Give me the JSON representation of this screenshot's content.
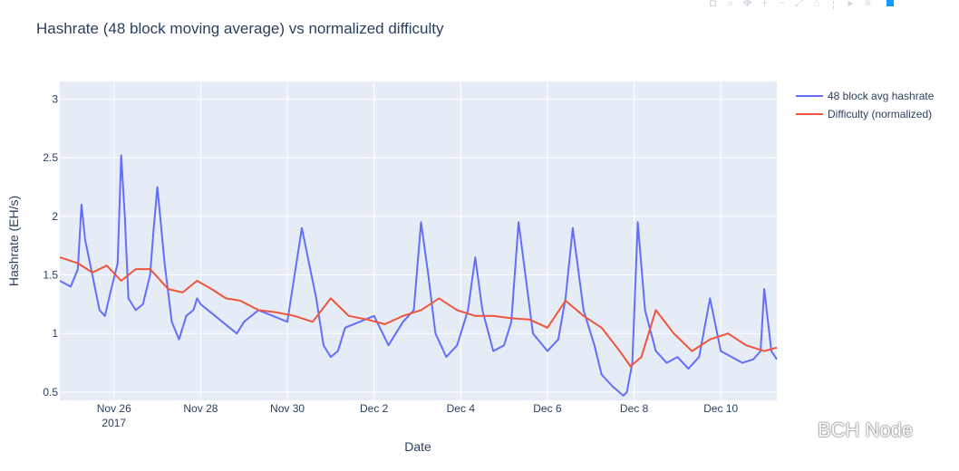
{
  "title": "Hashrate (48 block moving average) vs normalized difficulty",
  "watermark": "BCH Node",
  "toolbar": {
    "icons": [
      "camera-icon",
      "zoom-icon",
      "pan-icon",
      "zoom-in-icon",
      "zoom-out-icon",
      "autoscale-icon",
      "reset-axes-icon",
      "spike-lines-icon",
      "hover-closest-icon",
      "hover-compare-icon",
      "plotly-logo-icon"
    ]
  },
  "chart_data": {
    "type": "line",
    "xlabel": "Date",
    "ylabel": "Hashrate (EH/s)",
    "xlim": [
      "2017-11-24T18:00",
      "2017-12-11T07:00"
    ],
    "ylim": [
      0.43,
      3.15
    ],
    "yticks": [
      0.5,
      1,
      1.5,
      2,
      2.5,
      3
    ],
    "ytick_labels": [
      "0.5",
      "1",
      "1.5",
      "2",
      "2.5",
      "3"
    ],
    "xticks": [
      "2017-11-26",
      "2017-11-28",
      "2017-11-30",
      "2017-12-02",
      "2017-12-04",
      "2017-12-06",
      "2017-12-08",
      "2017-12-10"
    ],
    "xtick_labels": [
      "Nov 26",
      "Nov 28",
      "Nov 30",
      "Dec 2",
      "Dec 4",
      "Dec 6",
      "Dec 8",
      "Dec 10"
    ],
    "xtick_sublabel": "2017",
    "grid": true,
    "legend_position": "top-right",
    "series": [
      {
        "name": "48 block avg hashrate",
        "color": "#636efa",
        "x": [
          "2017-11-24T18:00",
          "2017-11-25T00:00",
          "2017-11-25T04:00",
          "2017-11-25T06:00",
          "2017-11-25T08:00",
          "2017-11-25T12:00",
          "2017-11-25T16:00",
          "2017-11-25T19:00",
          "2017-11-25T22:00",
          "2017-11-26T02:00",
          "2017-11-26T04:00",
          "2017-11-26T06:00",
          "2017-11-26T08:00",
          "2017-11-26T12:00",
          "2017-11-26T16:00",
          "2017-11-26T20:00",
          "2017-11-26T22:00",
          "2017-11-27T00:00",
          "2017-11-27T04:00",
          "2017-11-27T08:00",
          "2017-11-27T12:00",
          "2017-11-27T16:00",
          "2017-11-27T20:00",
          "2017-11-27T22:00",
          "2017-11-28T00:00",
          "2017-11-28T04:00",
          "2017-11-28T08:00",
          "2017-11-28T12:00",
          "2017-11-28T16:00",
          "2017-11-28T20:00",
          "2017-11-29T00:00",
          "2017-11-29T08:00",
          "2017-11-29T16:00",
          "2017-11-30T00:00",
          "2017-11-30T08:00",
          "2017-11-30T16:00",
          "2017-11-30T20:00",
          "2017-12-01T00:00",
          "2017-12-01T04:00",
          "2017-12-01T08:00",
          "2017-12-01T16:00",
          "2017-12-02T00:00",
          "2017-12-02T08:00",
          "2017-12-02T16:00",
          "2017-12-02T22:00",
          "2017-12-03T02:00",
          "2017-12-03T06:00",
          "2017-12-03T10:00",
          "2017-12-03T16:00",
          "2017-12-03T22:00",
          "2017-12-04T04:00",
          "2017-12-04T08:00",
          "2017-12-04T12:00",
          "2017-12-04T18:00",
          "2017-12-05T00:00",
          "2017-12-05T04:00",
          "2017-12-05T08:00",
          "2017-12-05T16:00",
          "2017-12-06T00:00",
          "2017-12-06T06:00",
          "2017-12-06T10:00",
          "2017-12-06T14:00",
          "2017-12-06T20:00",
          "2017-12-07T02:00",
          "2017-12-07T06:00",
          "2017-12-07T12:00",
          "2017-12-07T18:00",
          "2017-12-07T20:00",
          "2017-12-07T23:00",
          "2017-12-08T02:00",
          "2017-12-08T06:00",
          "2017-12-08T12:00",
          "2017-12-08T18:00",
          "2017-12-09T00:00",
          "2017-12-09T06:00",
          "2017-12-09T12:00",
          "2017-12-09T18:00",
          "2017-12-10T00:00",
          "2017-12-10T06:00",
          "2017-12-10T12:00",
          "2017-12-10T18:00",
          "2017-12-10T22:00",
          "2017-12-11T00:00",
          "2017-12-11T04:00",
          "2017-12-11T07:00"
        ],
        "y": [
          1.45,
          1.4,
          1.55,
          2.1,
          1.8,
          1.5,
          1.2,
          1.15,
          1.35,
          1.6,
          2.52,
          2.0,
          1.3,
          1.2,
          1.25,
          1.5,
          1.9,
          2.25,
          1.6,
          1.1,
          0.95,
          1.15,
          1.2,
          1.3,
          1.25,
          1.2,
          1.15,
          1.1,
          1.05,
          1.0,
          1.1,
          1.2,
          1.15,
          1.1,
          1.9,
          1.3,
          0.9,
          0.8,
          0.85,
          1.05,
          1.1,
          1.15,
          0.9,
          1.1,
          1.2,
          1.95,
          1.5,
          1.0,
          0.8,
          0.9,
          1.2,
          1.65,
          1.2,
          0.85,
          0.9,
          1.1,
          1.95,
          1.0,
          0.85,
          0.95,
          1.3,
          1.9,
          1.2,
          0.9,
          0.65,
          0.55,
          0.47,
          0.5,
          0.75,
          1.95,
          1.2,
          0.85,
          0.75,
          0.8,
          0.7,
          0.8,
          1.3,
          0.85,
          0.8,
          0.75,
          0.78,
          0.85,
          1.38,
          0.85,
          0.78
        ]
      },
      {
        "name": "Difficulty (normalized)",
        "color": "#ef553b",
        "x": [
          "2017-11-24T18:00",
          "2017-11-25T04:00",
          "2017-11-25T12:00",
          "2017-11-25T20:00",
          "2017-11-26T04:00",
          "2017-11-26T12:00",
          "2017-11-26T20:00",
          "2017-11-27T06:00",
          "2017-11-27T14:00",
          "2017-11-27T22:00",
          "2017-11-28T06:00",
          "2017-11-28T14:00",
          "2017-11-28T22:00",
          "2017-11-29T08:00",
          "2017-11-29T18:00",
          "2017-11-30T04:00",
          "2017-11-30T14:00",
          "2017-12-01T00:00",
          "2017-12-01T10:00",
          "2017-12-01T20:00",
          "2017-12-02T06:00",
          "2017-12-02T16:00",
          "2017-12-03T02:00",
          "2017-12-03T12:00",
          "2017-12-03T22:00",
          "2017-12-04T08:00",
          "2017-12-04T18:00",
          "2017-12-05T04:00",
          "2017-12-05T14:00",
          "2017-12-06T00:00",
          "2017-12-06T10:00",
          "2017-12-06T20:00",
          "2017-12-07T06:00",
          "2017-12-07T16:00",
          "2017-12-07T22:00",
          "2017-12-08T04:00",
          "2017-12-08T12:00",
          "2017-12-08T22:00",
          "2017-12-09T08:00",
          "2017-12-09T18:00",
          "2017-12-10T04:00",
          "2017-12-10T14:00",
          "2017-12-11T00:00",
          "2017-12-11T07:00"
        ],
        "y": [
          1.65,
          1.6,
          1.52,
          1.58,
          1.45,
          1.55,
          1.55,
          1.38,
          1.35,
          1.45,
          1.38,
          1.3,
          1.28,
          1.2,
          1.18,
          1.15,
          1.1,
          1.3,
          1.15,
          1.12,
          1.08,
          1.15,
          1.2,
          1.3,
          1.2,
          1.15,
          1.15,
          1.13,
          1.12,
          1.05,
          1.28,
          1.15,
          1.05,
          0.85,
          0.72,
          0.8,
          1.2,
          1.0,
          0.85,
          0.95,
          1.0,
          0.9,
          0.85,
          0.88
        ]
      }
    ]
  }
}
